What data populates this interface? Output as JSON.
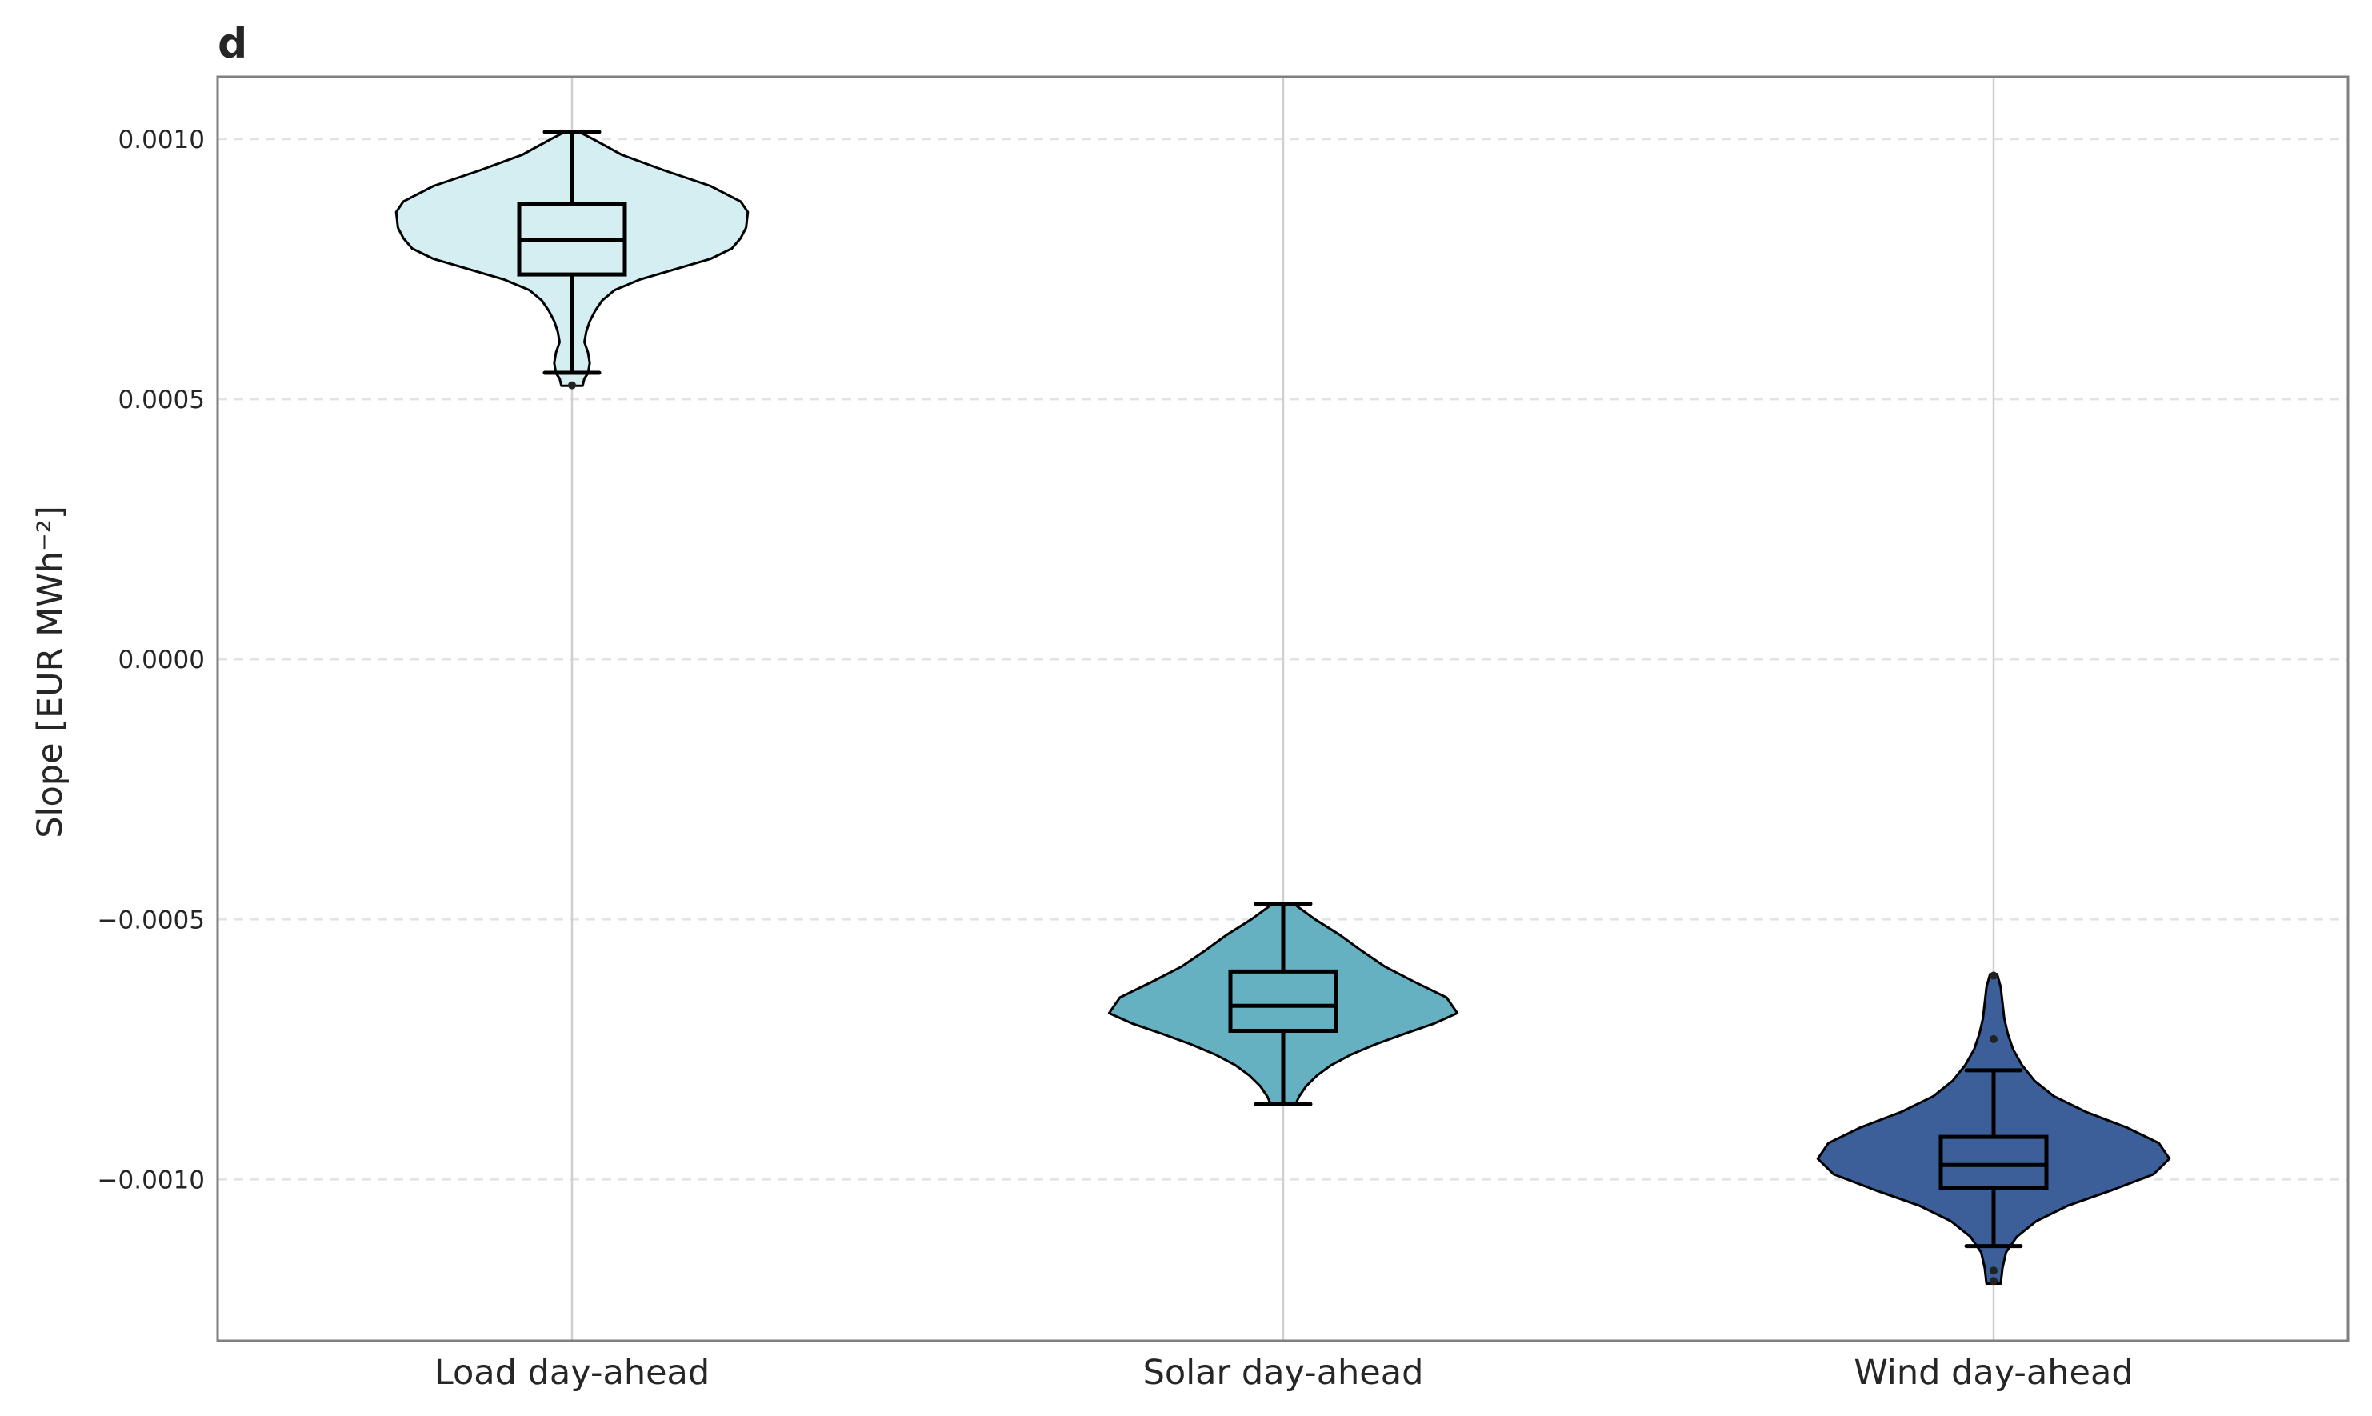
{
  "chart_data": {
    "type": "violin",
    "panel_label": "d",
    "ylabel": "Slope [EUR MWh⁻²]",
    "xlabel": "",
    "ylim": [
      -0.00131,
      0.00112
    ],
    "yticks": [
      0.001,
      0.0005,
      0.0,
      -0.0005,
      -0.001
    ],
    "ytick_labels": [
      "0.0010",
      "0.0005",
      "0.0000",
      "−0.0005",
      "−0.0010"
    ],
    "grid": {
      "y": "dashed",
      "x": "solid at categories"
    },
    "categories": [
      "Load day-ahead",
      "Solar day-ahead",
      "Wind day-ahead"
    ],
    "series": [
      {
        "category": "Load day-ahead",
        "color": "#d4eef2",
        "min": 0.000526,
        "max": 0.001014,
        "box": {
          "q1": 0.00074,
          "median": 0.000806,
          "q3": 0.000875,
          "whisker_low": 0.000551,
          "whisker_high": 0.001014
        },
        "outliers": [
          0.000527
        ],
        "density": [
          [
            0.001014,
            0.04
          ],
          [
            0.001,
            0.12
          ],
          [
            0.00097,
            0.28
          ],
          [
            0.00094,
            0.52
          ],
          [
            0.00091,
            0.78
          ],
          [
            0.00088,
            0.95
          ],
          [
            0.00086,
            0.99
          ],
          [
            0.00083,
            0.98
          ],
          [
            0.00081,
            0.95
          ],
          [
            0.00079,
            0.9
          ],
          [
            0.00077,
            0.78
          ],
          [
            0.00075,
            0.58
          ],
          [
            0.00073,
            0.38
          ],
          [
            0.00071,
            0.24
          ],
          [
            0.00069,
            0.17
          ],
          [
            0.00067,
            0.13
          ],
          [
            0.00065,
            0.1
          ],
          [
            0.00063,
            0.08
          ],
          [
            0.00061,
            0.07
          ],
          [
            0.00059,
            0.09
          ],
          [
            0.00057,
            0.1
          ],
          [
            0.00055,
            0.09
          ],
          [
            0.00054,
            0.07
          ],
          [
            0.000526,
            0.06
          ]
        ]
      },
      {
        "category": "Solar day-ahead",
        "color": "#66b1c1",
        "min": -0.000855,
        "max": -0.00047,
        "box": {
          "q1": -0.000714,
          "median": -0.000666,
          "q3": -0.0006,
          "whisker_low": -0.000855,
          "whisker_high": -0.00047
        },
        "outliers": [],
        "density": [
          [
            -0.00047,
            0.06
          ],
          [
            -0.0005,
            0.18
          ],
          [
            -0.00053,
            0.32
          ],
          [
            -0.00056,
            0.44
          ],
          [
            -0.00059,
            0.57
          ],
          [
            -0.00062,
            0.74
          ],
          [
            -0.00065,
            0.92
          ],
          [
            -0.00068,
            0.98
          ],
          [
            -0.0007,
            0.85
          ],
          [
            -0.00072,
            0.68
          ],
          [
            -0.00074,
            0.52
          ],
          [
            -0.00076,
            0.38
          ],
          [
            -0.00078,
            0.27
          ],
          [
            -0.0008,
            0.19
          ],
          [
            -0.00082,
            0.13
          ],
          [
            -0.00084,
            0.09
          ],
          [
            -0.000855,
            0.07
          ]
        ]
      },
      {
        "category": "Wind day-ahead",
        "color": "#3c5f99",
        "min": -0.0012,
        "max": -0.000605,
        "box": {
          "q1": -0.001016,
          "median": -0.000972,
          "q3": -0.000918,
          "whisker_low": -0.001128,
          "whisker_high": -0.00079
        },
        "outliers": [
          -0.000608,
          -0.00073,
          -0.001175,
          -0.001195
        ],
        "density": [
          [
            -0.000605,
            0.02
          ],
          [
            -0.00063,
            0.04
          ],
          [
            -0.00066,
            0.05
          ],
          [
            -0.00069,
            0.06
          ],
          [
            -0.00072,
            0.08
          ],
          [
            -0.00075,
            0.11
          ],
          [
            -0.00078,
            0.16
          ],
          [
            -0.00081,
            0.23
          ],
          [
            -0.00084,
            0.34
          ],
          [
            -0.00087,
            0.52
          ],
          [
            -0.0009,
            0.75
          ],
          [
            -0.00093,
            0.93
          ],
          [
            -0.00096,
            0.99
          ],
          [
            -0.00099,
            0.9
          ],
          [
            -0.00102,
            0.67
          ],
          [
            -0.00105,
            0.42
          ],
          [
            -0.00108,
            0.24
          ],
          [
            -0.00111,
            0.13
          ],
          [
            -0.00114,
            0.07
          ],
          [
            -0.00117,
            0.05
          ],
          [
            -0.0012,
            0.04
          ]
        ]
      }
    ]
  }
}
